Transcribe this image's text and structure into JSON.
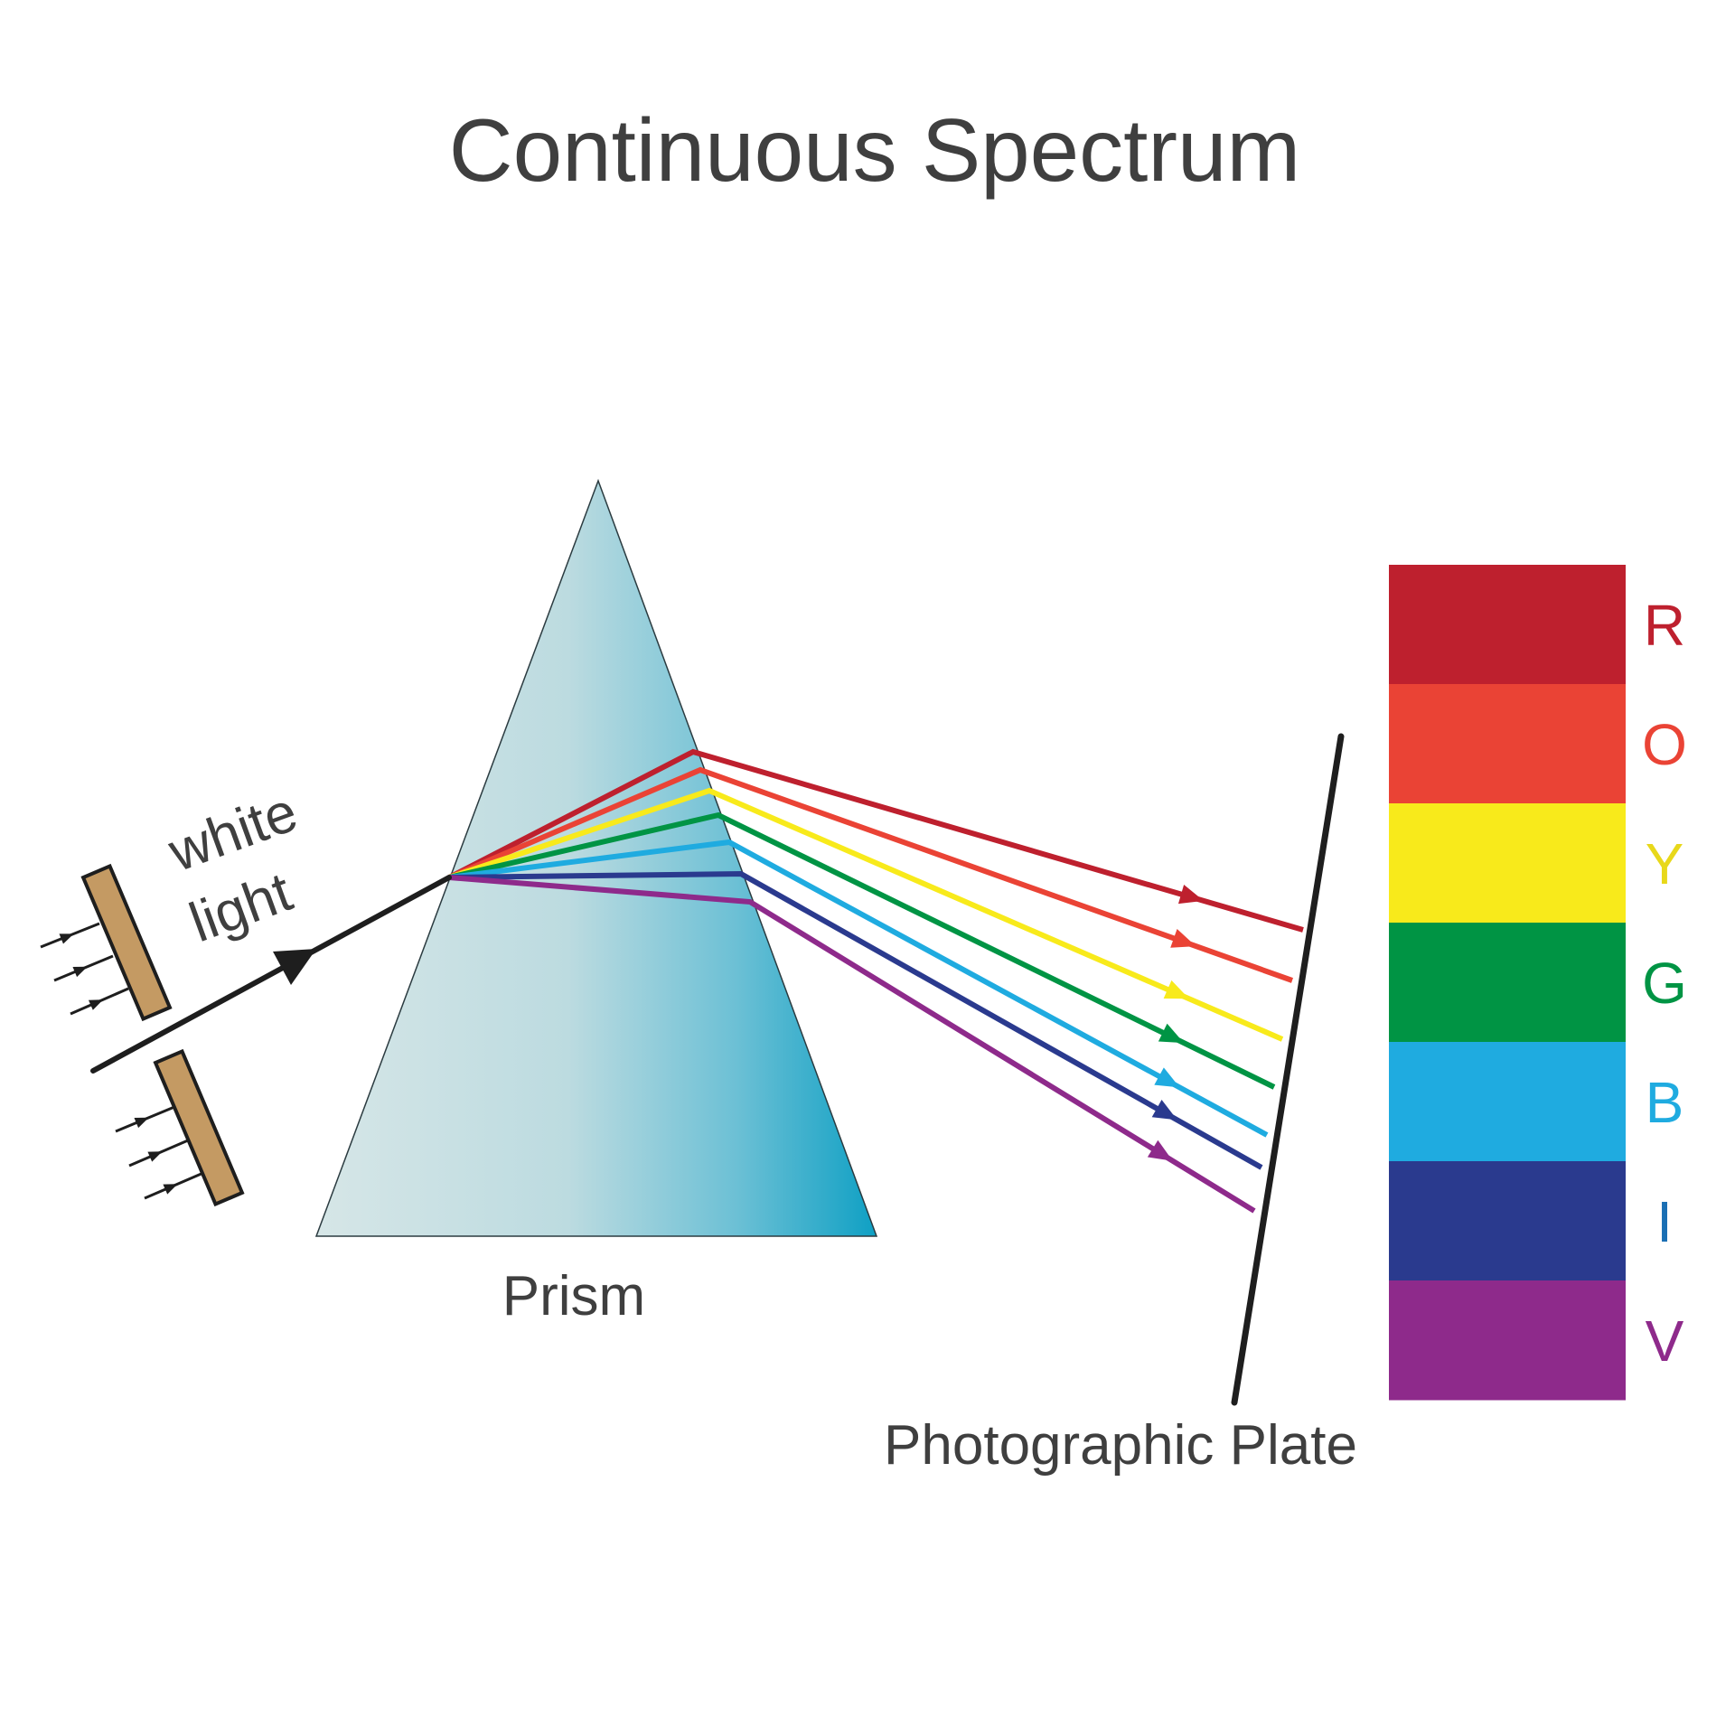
{
  "title": "Continuous Spectrum",
  "labels": {
    "white_light": [
      "white",
      "light"
    ],
    "prism": "Prism",
    "plate": "Photographic Plate"
  },
  "spectrum": [
    {
      "letter": "R",
      "color": "#be202e",
      "text_color": "#be202e"
    },
    {
      "letter": "O",
      "color": "#ea4335",
      "text_color": "#ea4335"
    },
    {
      "letter": "Y",
      "color": "#f8ea1b",
      "text_color": "#e8d81a"
    },
    {
      "letter": "G",
      "color": "#009444",
      "text_color": "#009444"
    },
    {
      "letter": "B",
      "color": "#1fabe0",
      "text_color": "#1fabe0"
    },
    {
      "letter": "I",
      "color": "#2a3a8e",
      "text_color": "#1a6fb4"
    },
    {
      "letter": "V",
      "color": "#8e2a8b",
      "text_color": "#8e2a8b"
    }
  ],
  "colors": {
    "ink": "#1e1e1e",
    "slit": "#c49a63",
    "prism_light": "#d6e6e7",
    "prism_dark": "#0fa0c4"
  }
}
